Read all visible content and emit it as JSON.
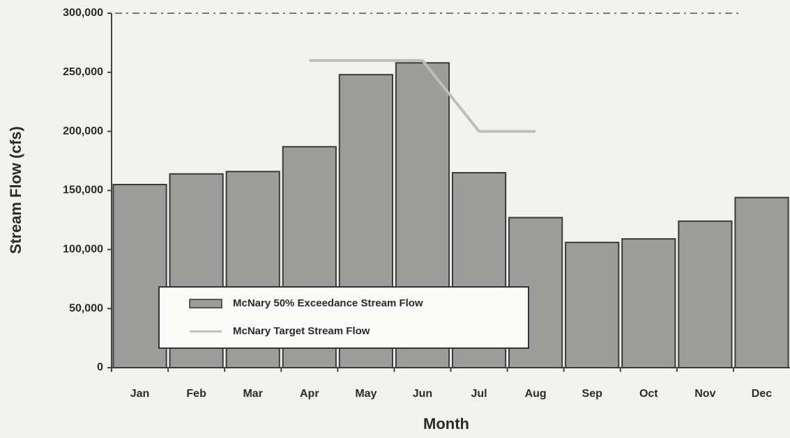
{
  "chart_data": {
    "type": "bar",
    "x_label": "Month",
    "y_label": "Stream Flow (cfs)",
    "categories": [
      "Jan",
      "Feb",
      "Mar",
      "Apr",
      "May",
      "Jun",
      "Jul",
      "Aug",
      "Sep",
      "Oct",
      "Nov",
      "Dec"
    ],
    "series": [
      {
        "name": "McNary 50% Exceedance Stream Flow",
        "type": "bar",
        "color": "#9c9c9a",
        "values": [
          155000,
          164000,
          166000,
          187000,
          248000,
          258000,
          165000,
          127000,
          106000,
          109000,
          124000,
          144000
        ]
      },
      {
        "name": "McNary Target Stream Flow",
        "type": "line",
        "color": "#bdbdbb",
        "values": [
          null,
          null,
          null,
          260000,
          260000,
          260000,
          200000,
          200000,
          null,
          null,
          null,
          null
        ]
      }
    ],
    "ylim": [
      0,
      300000
    ],
    "yticks": [
      0,
      {
        "value": 50000,
        "label": "50,000"
      },
      {
        "value": 100000,
        "label": "100,000"
      },
      {
        "value": 150000,
        "label": "150,000"
      },
      {
        "value": 200000,
        "label": "200,000"
      },
      {
        "value": 250000,
        "label": "250,000"
      },
      {
        "value": 300000,
        "label": "300,000"
      }
    ],
    "grid": false,
    "legend": "lower left"
  }
}
